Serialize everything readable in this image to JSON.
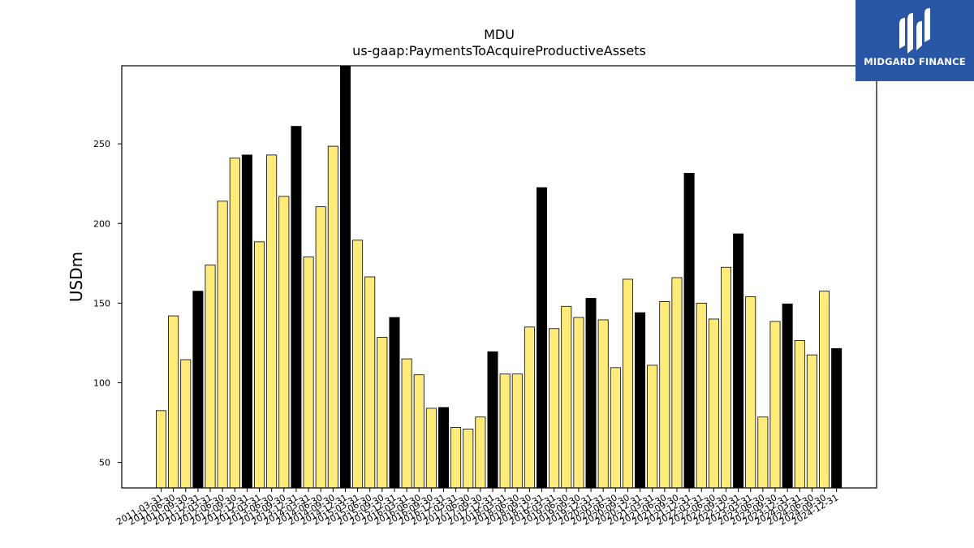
{
  "brand": {
    "name": "MIDGARD FINANCE",
    "logo_icon": "midgard-logo-icon"
  },
  "colors": {
    "bar_regular": "#FFEB7A",
    "bar_year_end": "#000000",
    "edge": "#000000",
    "brand_bg": "#2a56a6"
  },
  "chart_data": {
    "type": "bar",
    "title": "MDU",
    "subtitle": "us-gaap:PaymentsToAcquireProductiveAssets",
    "ylabel": "USDm",
    "xlabel": "",
    "ylim": [
      34,
      299
    ],
    "yticks": [
      50,
      100,
      150,
      200,
      250
    ],
    "grid": false,
    "legend": "none",
    "categories": [
      "2011-03-31",
      "2011-06-30",
      "2011-09-30",
      "2011-12-31",
      "2012-03-31",
      "2012-06-30",
      "2012-09-30",
      "2012-12-31",
      "2013-03-31",
      "2013-06-30",
      "2013-09-30",
      "2013-12-31",
      "2014-03-31",
      "2014-06-30",
      "2014-09-30",
      "2014-12-31",
      "2015-03-31",
      "2015-06-30",
      "2015-09-30",
      "2015-12-31",
      "2016-03-31",
      "2016-06-30",
      "2016-09-30",
      "2016-12-31",
      "2017-03-31",
      "2017-06-30",
      "2017-09-30",
      "2017-12-31",
      "2018-03-31",
      "2018-06-30",
      "2018-09-30",
      "2018-12-31",
      "2019-03-31",
      "2019-06-30",
      "2019-09-30",
      "2019-12-31",
      "2020-03-31",
      "2020-06-30",
      "2020-09-30",
      "2020-12-31",
      "2021-03-31",
      "2021-06-30",
      "2021-09-30",
      "2021-12-31",
      "2022-03-31",
      "2022-06-30",
      "2022-09-30",
      "2022-12-31",
      "2023-03-31",
      "2023-06-30",
      "2023-09-30",
      "2023-12-31",
      "2024-03-31",
      "2024-06-30",
      "2024-09-30",
      "2024-12-31"
    ],
    "values": [
      82.5,
      142,
      114.5,
      157.5,
      174,
      214,
      241,
      243,
      188.5,
      243,
      217,
      261,
      179,
      210.5,
      248.5,
      299,
      189.5,
      166.5,
      128.5,
      141,
      115,
      105,
      84,
      84.5,
      72,
      71,
      78.5,
      119.5,
      105.5,
      105.5,
      135,
      222.5,
      134,
      148,
      141,
      153,
      139.5,
      109.5,
      165,
      144,
      111,
      151,
      166,
      231.5,
      150,
      140,
      172.5,
      193.5,
      154,
      78.5,
      138.5,
      149.5,
      126.5,
      117.5,
      157.5,
      121.5
    ],
    "year_end_categories": [
      "2011-12-31",
      "2012-12-31",
      "2013-12-31",
      "2014-12-31",
      "2015-12-31",
      "2016-12-31",
      "2017-12-31",
      "2018-12-31",
      "2019-12-31",
      "2020-12-31",
      "2021-12-31",
      "2022-12-31",
      "2023-12-31",
      "2024-12-31"
    ]
  }
}
